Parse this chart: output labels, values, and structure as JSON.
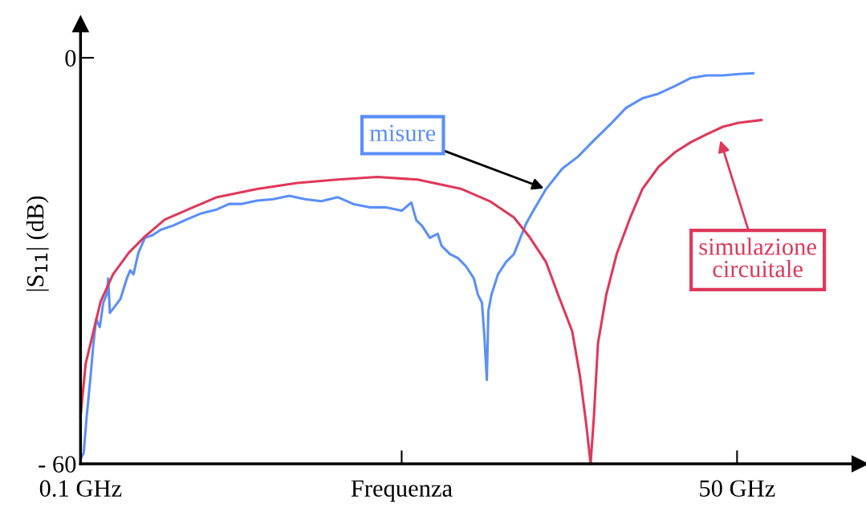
{
  "chart_data": {
    "type": "line",
    "ylabel": "|S$_{11}$| (dB)",
    "log": "x",
    "xlim": [
      0.1,
      160
    ],
    "ylim": [
      -60,
      5
    ],
    "xticks": [
      {
        "value": 0.1,
        "label": "0.1 GHz"
      },
      {
        "value": 2.09,
        "label": "Frequenza"
      },
      {
        "value": 50,
        "label": "50 GHz"
      }
    ],
    "yticks": [
      {
        "value": 0,
        "label": "0"
      },
      {
        "value": -60,
        "label": "- 60"
      }
    ],
    "grid": false,
    "marker": "none",
    "line_style": "solid",
    "series": [
      {
        "color": "#5b8ff9",
        "x": [
          0.1,
          0.103,
          0.106,
          0.11,
          0.113,
          0.116,
          0.12,
          0.124,
          0.128,
          0.13,
          0.132,
          0.138,
          0.146,
          0.155,
          0.16,
          0.165,
          0.173,
          0.184,
          0.198,
          0.214,
          0.24,
          0.269,
          0.313,
          0.364,
          0.408,
          0.457,
          0.532,
          0.619,
          0.721,
          0.839,
          0.977,
          1.14,
          1.32,
          1.54,
          1.79,
          2.09,
          2.29,
          2.4,
          2.53,
          2.73,
          2.94,
          3.05,
          3.3,
          3.56,
          3.84,
          4.14,
          4.3,
          4.47,
          4.57,
          4.68,
          4.75,
          4.89,
          5.2,
          5.61,
          6.05,
          6.43,
          6.79,
          7.32,
          8.2,
          9.55,
          11.1,
          12.9,
          15.1,
          17.5,
          20.4,
          23.8,
          27.7,
          32.2,
          37.5,
          43.7,
          50.8,
          58.3
        ],
        "values": [
          -59.3,
          -58.4,
          -53.0,
          -47.0,
          -42.2,
          -38.6,
          -39.8,
          -36.2,
          -35.0,
          -32.6,
          -37.7,
          -36.8,
          -35.6,
          -32.6,
          -31.4,
          -32.0,
          -28.8,
          -26.6,
          -26.2,
          -25.4,
          -24.8,
          -24.0,
          -23.0,
          -22.4,
          -21.6,
          -21.6,
          -21.1,
          -20.9,
          -20.4,
          -20.9,
          -21.2,
          -20.6,
          -21.6,
          -22.1,
          -22.1,
          -22.6,
          -21.4,
          -24.0,
          -24.8,
          -26.6,
          -26.0,
          -27.8,
          -29.0,
          -29.6,
          -30.8,
          -32.6,
          -35.0,
          -36.2,
          -41.0,
          -47.6,
          -37.4,
          -35.0,
          -32.0,
          -30.2,
          -29.0,
          -26.6,
          -24.5,
          -22.4,
          -19.4,
          -16.4,
          -14.6,
          -12.2,
          -9.8,
          -7.4,
          -6.0,
          -5.3,
          -4.2,
          -3.0,
          -2.6,
          -2.6,
          -2.4,
          -2.3
        ]
      },
      {
        "color": "#e0385a",
        "x": [
          0.1,
          0.105,
          0.112,
          0.121,
          0.136,
          0.158,
          0.184,
          0.222,
          0.29,
          0.364,
          0.532,
          0.778,
          1.14,
          1.66,
          2.43,
          3.69,
          4.82,
          6.05,
          7.05,
          8.2,
          9.19,
          10.5,
          11.3,
          12.0,
          12.5,
          12.9,
          13.4,
          14.5,
          16.0,
          18.2,
          20.4,
          23.8,
          27.7,
          32.2,
          37.5,
          43.7,
          50.8,
          62.9
        ],
        "values": [
          -53.0,
          -45.2,
          -41.0,
          -36.0,
          -32.0,
          -28.8,
          -26.4,
          -23.9,
          -22.1,
          -20.6,
          -19.4,
          -18.5,
          -18.0,
          -17.6,
          -18.0,
          -19.4,
          -21.2,
          -23.6,
          -26.6,
          -30.2,
          -35.0,
          -40.4,
          -47.0,
          -54.2,
          -60,
          -53.0,
          -42.2,
          -35.0,
          -29.0,
          -23.6,
          -19.4,
          -16.1,
          -14.0,
          -12.5,
          -11.3,
          -10.2,
          -9.6,
          -9.2
        ]
      }
    ],
    "annotations": [
      {
        "text": "misure",
        "x": 8.2,
        "y": -19.4
      },
      "simulazione\ncircuitale"
    ]
  }
}
